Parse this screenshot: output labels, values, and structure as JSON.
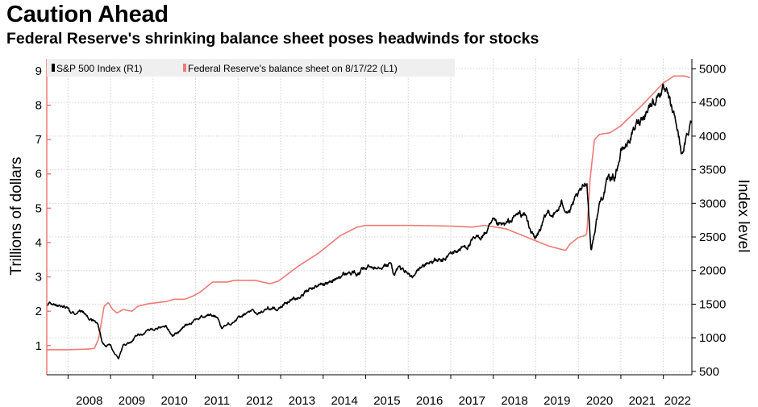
{
  "title": "Caution Ahead",
  "subtitle": "Federal Reserve's shrinking balance sheet poses headwinds for stocks",
  "colors": {
    "sp500": "#000000",
    "fed": "#f07a75",
    "left_axis_tick": "#f07a75",
    "grid": "#d0d0d0",
    "legend_bg": "#efefef"
  },
  "chart_data": {
    "type": "line",
    "title": "Caution Ahead",
    "subtitle": "Federal Reserve's shrinking balance sheet poses headwinds for stocks",
    "xlabel": "",
    "ylabel_left": "Trillions of dollars",
    "ylabel_right": "Index level",
    "x_tick_labels": [
      "2008",
      "2009",
      "2010",
      "2011",
      "2012",
      "2013",
      "2014",
      "2015",
      "2016",
      "2017",
      "2018",
      "2019",
      "2020",
      "2021",
      "2022"
    ],
    "x_range": [
      2007.5,
      2022.67
    ],
    "y_left_ticks": [
      "1",
      "2",
      "3",
      "4",
      "5",
      "6",
      "7",
      "8",
      "9"
    ],
    "y_left_range": [
      0.15,
      9.35
    ],
    "y_right_ticks": [
      "500",
      "1000",
      "1500",
      "2000",
      "2500",
      "3000",
      "3500",
      "4000",
      "4500",
      "5000"
    ],
    "y_right_range": [
      450,
      5150
    ],
    "grid": true,
    "legend_position": "top-left",
    "series": [
      {
        "name": "S&P 500 Index (R1)",
        "axis": "right",
        "color": "#000000",
        "x": [
          2007.5,
          2007.6,
          2007.75,
          2007.9,
          2008.0,
          2008.1,
          2008.2,
          2008.35,
          2008.5,
          2008.6,
          2008.7,
          2008.8,
          2008.9,
          2009.0,
          2009.1,
          2009.19,
          2009.3,
          2009.45,
          2009.6,
          2009.75,
          2010.0,
          2010.3,
          2010.45,
          2010.6,
          2010.75,
          2011.0,
          2011.3,
          2011.5,
          2011.62,
          2011.75,
          2012.0,
          2012.3,
          2012.45,
          2012.7,
          2012.9,
          2013.0,
          2013.3,
          2013.5,
          2013.75,
          2014.0,
          2014.1,
          2014.3,
          2014.6,
          2014.8,
          2015.0,
          2015.4,
          2015.6,
          2015.65,
          2015.8,
          2016.0,
          2016.1,
          2016.3,
          2016.6,
          2016.8,
          2017.0,
          2017.4,
          2017.8,
          2018.0,
          2018.1,
          2018.3,
          2018.6,
          2018.75,
          2018.98,
          2019.1,
          2019.3,
          2019.45,
          2019.6,
          2019.8,
          2020.1,
          2020.2,
          2020.3,
          2020.5,
          2020.7,
          2020.85,
          2021.0,
          2021.2,
          2021.4,
          2021.6,
          2021.8,
          2021.95,
          2022.1,
          2022.3,
          2022.45,
          2022.6,
          2022.67
        ],
        "values": [
          1480,
          1530,
          1500,
          1470,
          1420,
          1350,
          1380,
          1400,
          1270,
          1250,
          1200,
          950,
          880,
          900,
          780,
          700,
          880,
          930,
          1020,
          1060,
          1130,
          1180,
          1050,
          1080,
          1180,
          1280,
          1340,
          1320,
          1150,
          1200,
          1280,
          1400,
          1350,
          1440,
          1420,
          1480,
          1580,
          1640,
          1750,
          1820,
          1800,
          1880,
          1970,
          1950,
          2030,
          2100,
          2090,
          1950,
          2050,
          1950,
          1880,
          2050,
          2160,
          2120,
          2250,
          2380,
          2550,
          2700,
          2650,
          2670,
          2850,
          2820,
          2450,
          2600,
          2880,
          2830,
          2980,
          2900,
          3200,
          3350,
          2300,
          3000,
          3350,
          3400,
          3750,
          3950,
          4200,
          4400,
          4550,
          4700,
          4550,
          4200,
          3700,
          4100,
          4250
        ]
      },
      {
        "name": "Federal Reserve's balance sheet on 8/17/22 (L1)",
        "axis": "left",
        "color": "#f07a75",
        "x": [
          2007.5,
          2008.0,
          2008.5,
          2008.62,
          2008.72,
          2008.85,
          2008.95,
          2009.05,
          2009.15,
          2009.3,
          2009.5,
          2009.65,
          2009.9,
          2010.3,
          2010.5,
          2010.75,
          2010.95,
          2011.1,
          2011.4,
          2011.5,
          2011.75,
          2011.9,
          2012.4,
          2012.75,
          2012.95,
          2013.4,
          2013.9,
          2014.4,
          2014.8,
          2015.0,
          2016.0,
          2017.0,
          2017.5,
          2017.8,
          2018.3,
          2018.8,
          2019.3,
          2019.7,
          2019.8,
          2020.0,
          2020.15,
          2020.2,
          2020.28,
          2020.38,
          2020.5,
          2020.75,
          2021.0,
          2021.5,
          2022.0,
          2022.25,
          2022.5,
          2022.63
        ],
        "values": [
          0.88,
          0.88,
          0.9,
          0.92,
          1.2,
          2.15,
          2.25,
          2.05,
          1.95,
          2.05,
          2.0,
          2.15,
          2.22,
          2.28,
          2.35,
          2.35,
          2.45,
          2.55,
          2.85,
          2.85,
          2.85,
          2.9,
          2.9,
          2.8,
          2.88,
          3.3,
          3.7,
          4.2,
          4.45,
          4.5,
          4.5,
          4.48,
          4.45,
          4.5,
          4.4,
          4.15,
          3.9,
          3.77,
          3.95,
          4.15,
          4.2,
          4.25,
          5.9,
          7.0,
          7.15,
          7.2,
          7.4,
          8.0,
          8.65,
          8.85,
          8.85,
          8.8
        ]
      }
    ]
  }
}
